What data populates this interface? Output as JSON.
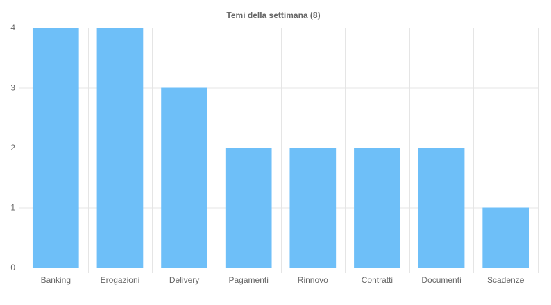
{
  "chart_data": {
    "type": "bar",
    "title": "Temi della settimana (8)",
    "xlabel": "",
    "ylabel": "",
    "categories": [
      "Banking",
      "Erogazioni",
      "Delivery",
      "Pagamenti",
      "Rinnovo",
      "Contratti",
      "Documenti",
      "Scadenze"
    ],
    "values": [
      4,
      4,
      3,
      2,
      2,
      2,
      2,
      1
    ],
    "ylim": [
      0,
      4
    ],
    "yticks": [
      0,
      1,
      2,
      3,
      4
    ],
    "grid": true,
    "legend": "none",
    "colors": {
      "bar": "#6ebff8",
      "grid": "#e5e5e5",
      "axis": "#cccccc",
      "tick_text": "#666666",
      "title_text": "#666666"
    }
  }
}
